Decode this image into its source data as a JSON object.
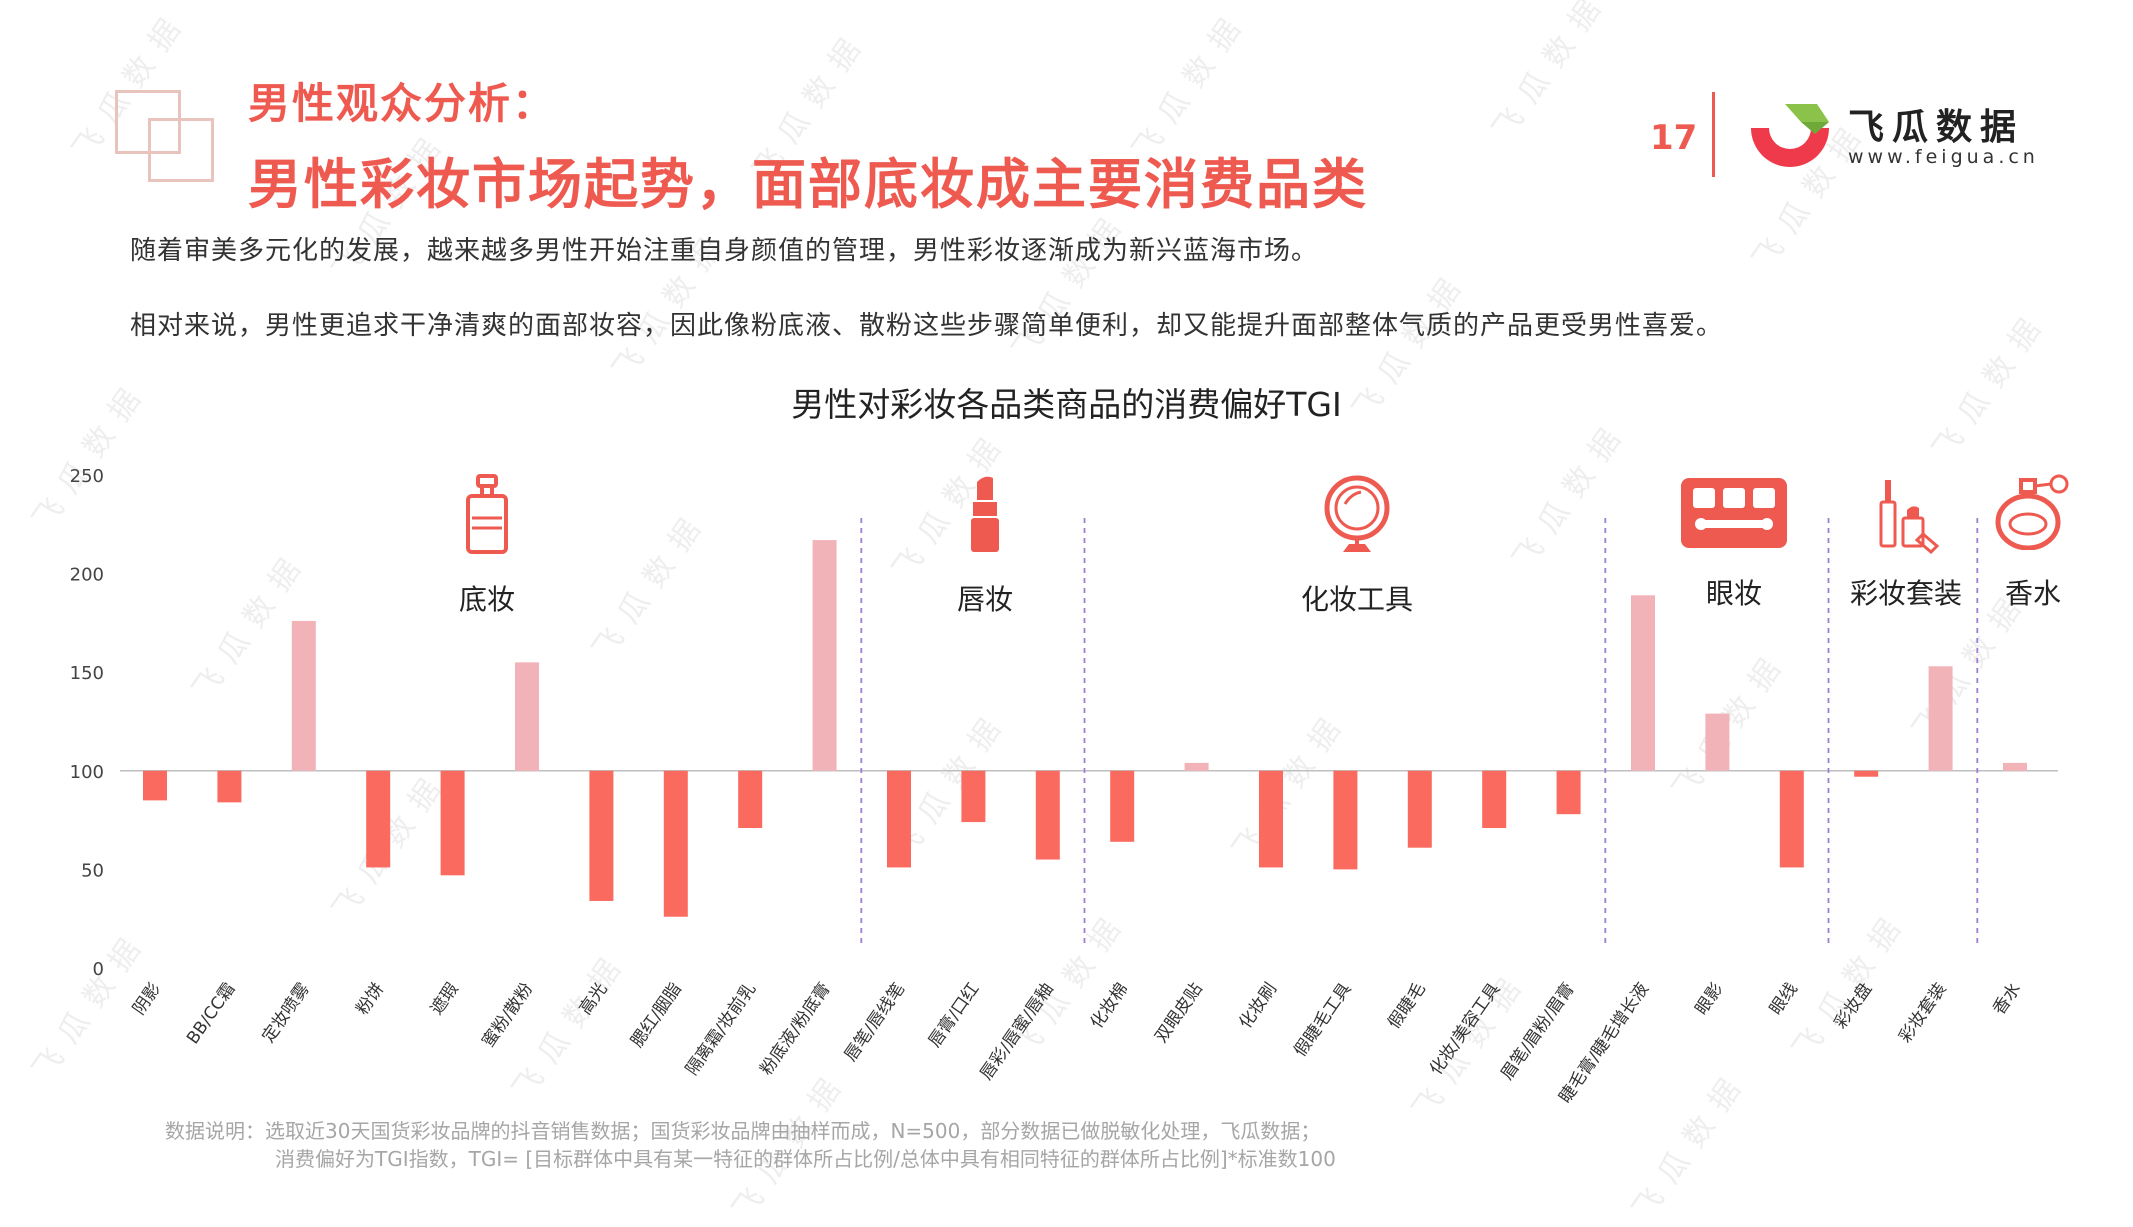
{
  "header": {
    "kicker": "男性观众分析：",
    "title": "男性彩妆市场起势，面部底妆成主要消费品类",
    "page_number": "17",
    "brand_name": "飞瓜数据",
    "brand_url": "www.feigua.cn",
    "accent_color": "#ee5a50"
  },
  "watermark": "飞瓜数据",
  "paragraphs": [
    "随着审美多元化的发展，越来越多男性开始注重自身颜值的管理，男性彩妆逐渐成为新兴蓝海市场。",
    "相对来说，男性更追求干净清爽的面部妆容，因此像粉底液、散粉这些步骤简单便利，却又能提升面部整体气质的产品更受男性喜爱。"
  ],
  "chart_data": {
    "type": "bar",
    "title": "男性对彩妆各品类商品的消费偏好TGI",
    "baseline": 100,
    "ylim": [
      0,
      250
    ],
    "yticks": [
      0,
      50,
      100,
      150,
      200,
      250
    ],
    "categories": [
      "阴影",
      "BB/CC霜",
      "定妆喷雾",
      "粉饼",
      "遮瑕",
      "蜜粉/散粉",
      "高光",
      "腮红/胭脂",
      "隔离霜/妆前乳",
      "粉底液/粉底膏",
      "唇笔/唇线笔",
      "唇膏/口红",
      "唇彩/唇蜜/唇釉",
      "化妆棉",
      "双眼皮贴",
      "化妆刷",
      "假睫毛工具",
      "假睫毛",
      "化妆/美容工具",
      "眉笔/眉粉/眉膏",
      "睫毛膏/睫毛增长液",
      "眼影",
      "眼线",
      "彩妆盘",
      "彩妆套装",
      "香水"
    ],
    "values": [
      85,
      84,
      176,
      51,
      47,
      155,
      34,
      26,
      71,
      217,
      51,
      74,
      55,
      64,
      104,
      51,
      50,
      61,
      71,
      78,
      189,
      129,
      51,
      97,
      153,
      104
    ],
    "colors": {
      "above": "#f2b3b8",
      "below": "#fa6a5e"
    },
    "groups": [
      {
        "label": "底妆",
        "icon": "foundation-bottle-icon",
        "start": 0,
        "end": 9
      },
      {
        "label": "唇妆",
        "icon": "lipstick-icon",
        "start": 10,
        "end": 12
      },
      {
        "label": "化妆工具",
        "icon": "mirror-icon",
        "start": 13,
        "end": 19
      },
      {
        "label": "眼妆",
        "icon": "eyeshadow-palette-icon",
        "start": 20,
        "end": 22
      },
      {
        "label": "彩妆套装",
        "icon": "makeup-set-icon",
        "start": 23,
        "end": 24
      },
      {
        "label": "香水",
        "icon": "perfume-icon",
        "start": 25,
        "end": 25
      }
    ]
  },
  "footnote": [
    "数据说明：选取近30天国货彩妆品牌的抖音销售数据；国货彩妆品牌由抽样而成，N=500，部分数据已做脱敏化处理，飞瓜数据；",
    "消费偏好为TGI指数，TGI= [目标群体中具有某一特征的群体所占比例/总体中具有相同特征的群体所占比例]*标准数100"
  ]
}
